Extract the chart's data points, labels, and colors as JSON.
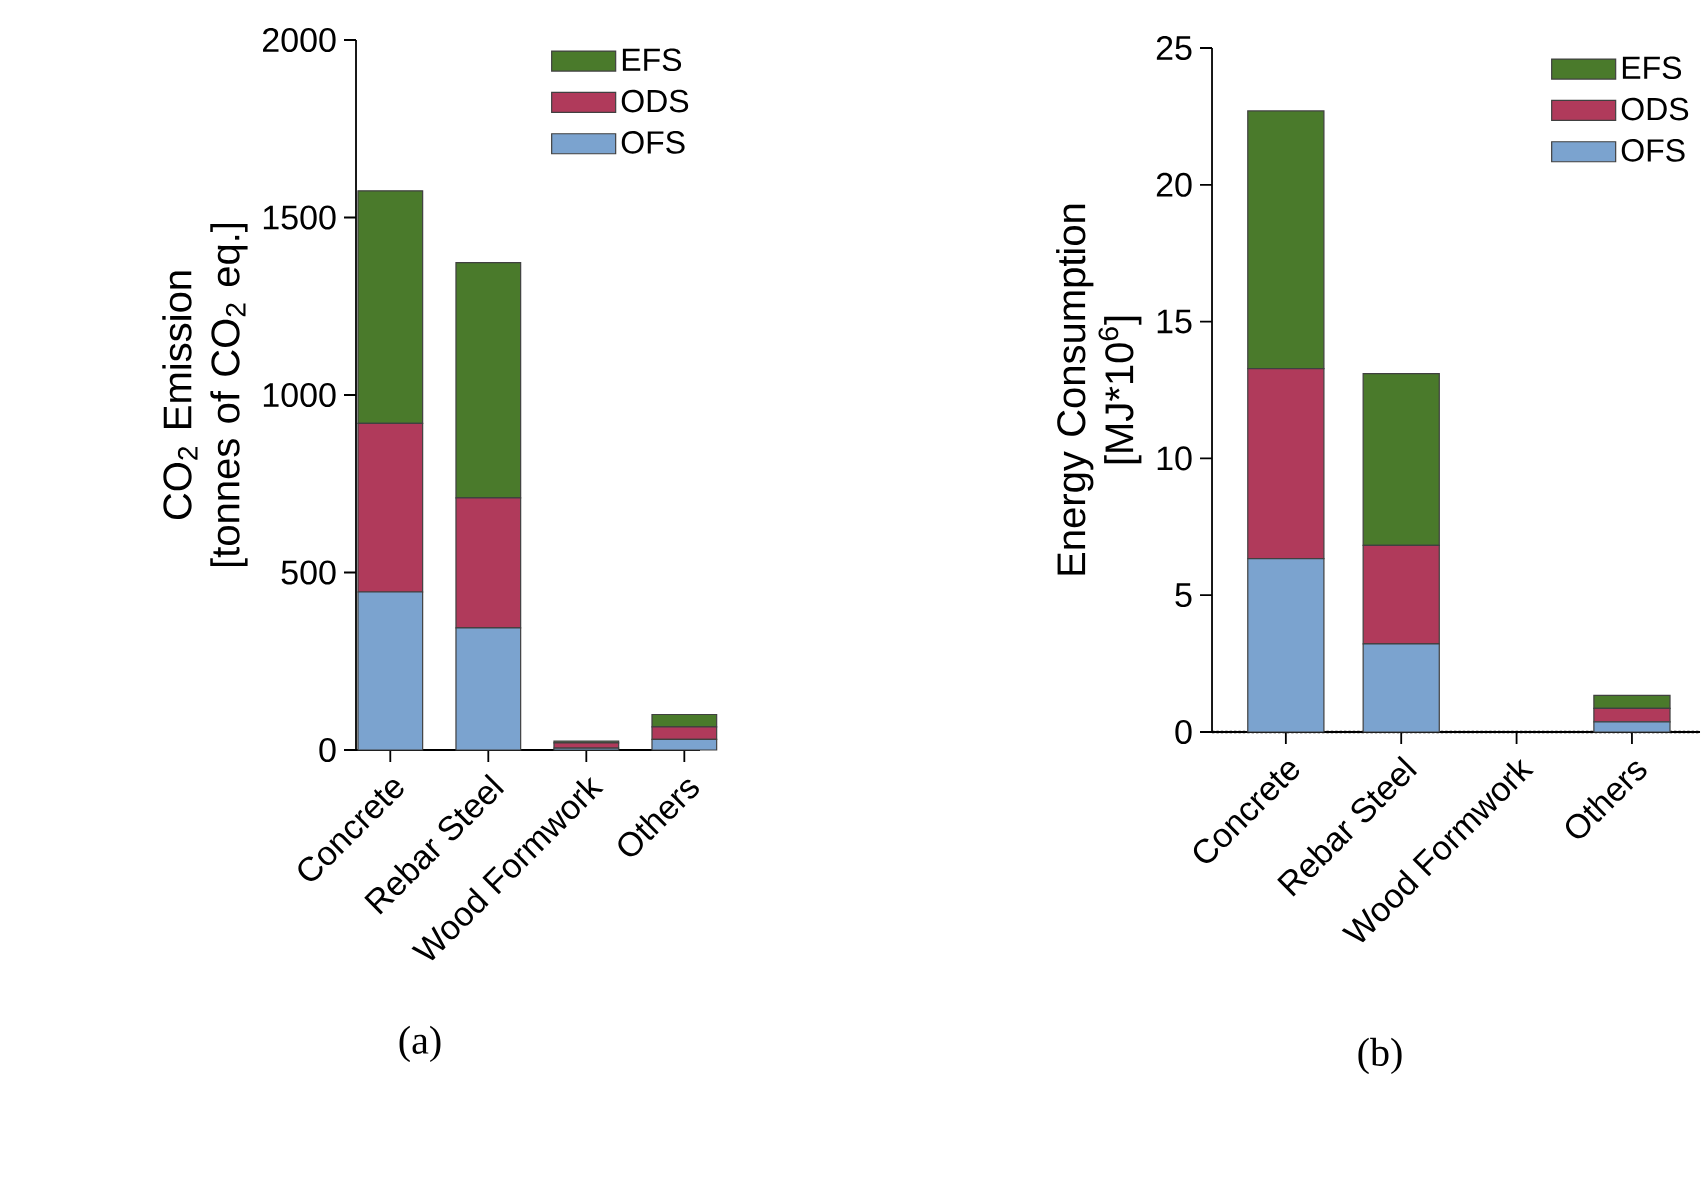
{
  "chart_data": [
    {
      "type": "bar",
      "stacked": true,
      "categories": [
        "Concrete",
        "Rebar Steel",
        "Wood Formwork",
        "Others"
      ],
      "ylabel": "CO$_{2}$ Emission [tonnes of CO$_{2}$ eq.]",
      "ylim": [
        0,
        2000
      ],
      "yticks": [
        0,
        500,
        1000,
        1500,
        2000
      ],
      "legend": "top right",
      "series": [
        {
          "name": "OFS",
          "color": "#7ba3cf",
          "values": [
            445,
            344,
            5,
            30
          ]
        },
        {
          "name": "ODS",
          "color": "#b03a5b",
          "values": [
            475,
            366,
            15,
            35
          ]
        },
        {
          "name": "EFS",
          "color": "#4a7a2b",
          "values": [
            655,
            663,
            5,
            35
          ]
        }
      ],
      "annotations": [
        "(a)"
      ]
    },
    {
      "type": "bar",
      "stacked": true,
      "categories": [
        "Concrete",
        "Rebar Steel",
        "Wood Formwork",
        "Others"
      ],
      "ylabel": "Energy Consumption [MJ*10$^{6}$]",
      "ylim": [
        0,
        25
      ],
      "yticks": [
        0,
        5,
        10,
        15,
        20,
        25
      ],
      "legend": "top right",
      "series": [
        {
          "name": "OFS",
          "color": "#7ba3cf",
          "values": [
            6.34,
            3.22,
            null,
            0.37
          ]
        },
        {
          "name": "ODS",
          "color": "#b03a5b",
          "values": [
            6.94,
            3.6,
            null,
            0.49
          ]
        },
        {
          "name": "EFS",
          "color": "#4a7a2b",
          "values": [
            9.42,
            6.28,
            null,
            0.48
          ]
        }
      ],
      "ref_lines": [
        {
          "axis": "y",
          "value": 0,
          "line_style": "dotted"
        }
      ],
      "annotations": [
        "(b)"
      ]
    }
  ]
}
